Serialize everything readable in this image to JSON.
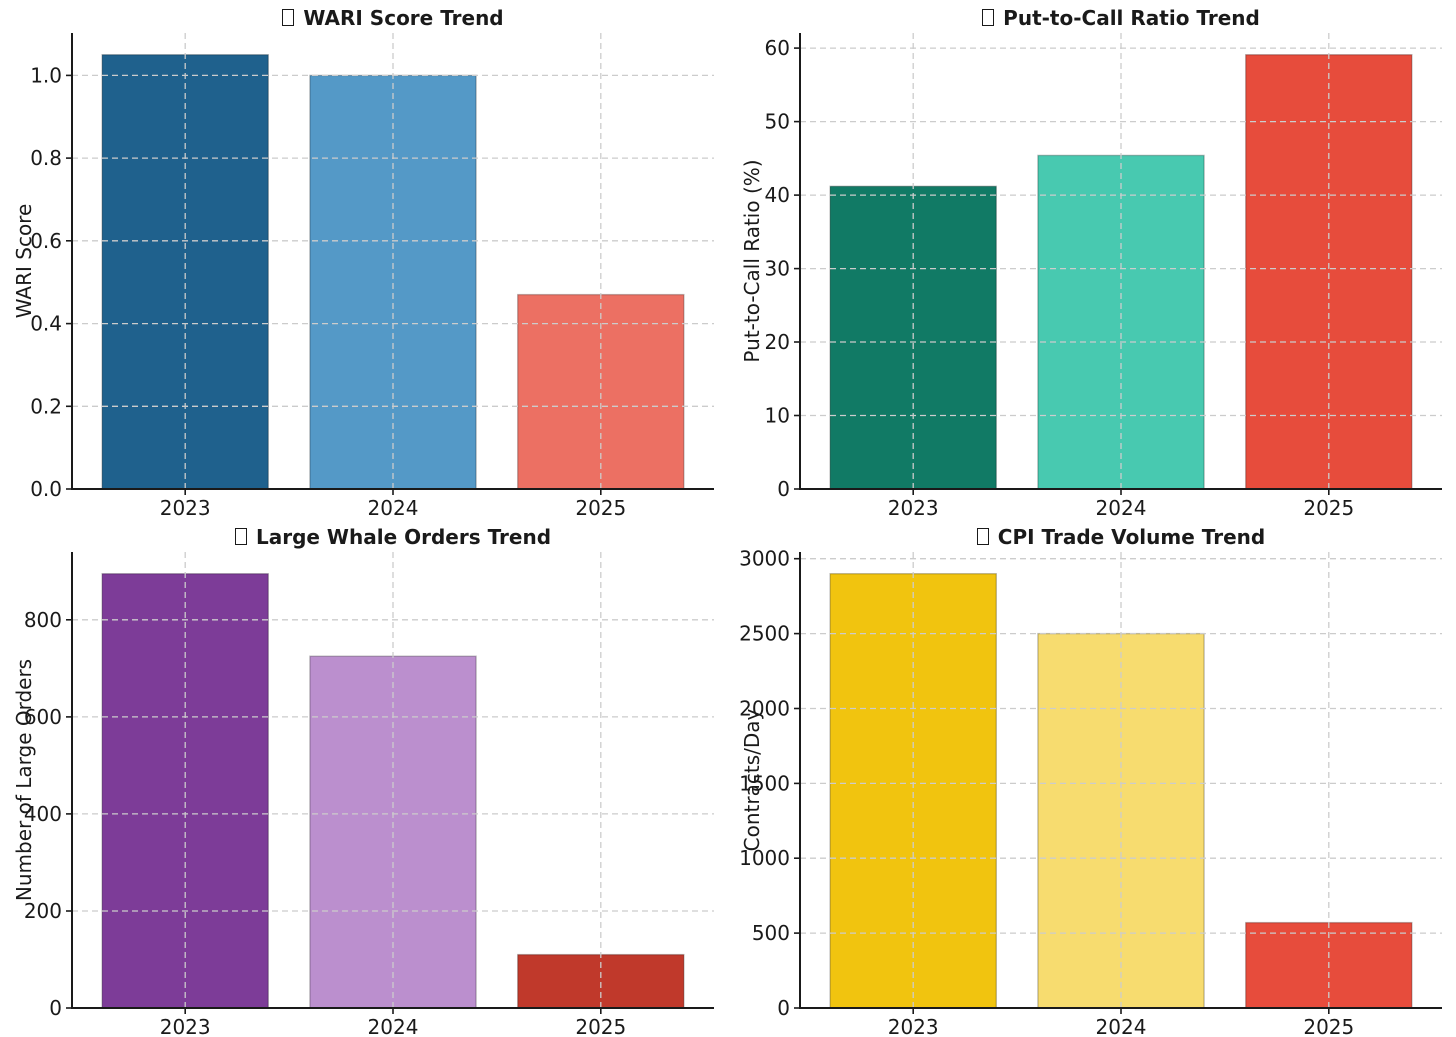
{
  "figure": {
    "background": "#ffffff",
    "grid_color": "#cccccc",
    "axis_color": "#1a1a1a",
    "text_color": "#1a1a1a",
    "bar_edge_color": "rgba(0,0,0,0.24)"
  },
  "chart_data": [
    {
      "type": "bar",
      "panel": "top-left",
      "title": "WARI Score Trend",
      "title_icon": "missing-glyph-box",
      "xlabel": "",
      "ylabel": "WARI Score",
      "categories": [
        "2023",
        "2024",
        "2025"
      ],
      "values": [
        1.05,
        1.0,
        0.47
      ],
      "bar_colors": [
        "#1F618D",
        "#5499C7",
        "#EC7063"
      ],
      "ylim": [
        0,
        1.1025
      ],
      "yticks": [
        0,
        0.2,
        0.4,
        0.6,
        0.8,
        1.0
      ],
      "ytick_labels": [
        "0.0",
        "0.2",
        "0.4",
        "0.6",
        "0.8",
        "1.0"
      ],
      "grid": "dashed-both-axes",
      "legend": null
    },
    {
      "type": "bar",
      "panel": "top-right",
      "title": "Put-to-Call Ratio Trend",
      "title_icon": "missing-glyph-box",
      "xlabel": "",
      "ylabel": "Put-to-Call Ratio (%)",
      "categories": [
        "2023",
        "2024",
        "2025"
      ],
      "values": [
        41.2,
        45.4,
        59.1
      ],
      "bar_colors": [
        "#117A65",
        "#48C9B0",
        "#E74C3C"
      ],
      "ylim": [
        0,
        62.06
      ],
      "yticks": [
        0,
        10,
        20,
        30,
        40,
        50,
        60
      ],
      "ytick_labels": [
        "0",
        "10",
        "20",
        "30",
        "40",
        "50",
        "60"
      ],
      "grid": "dashed-both-axes",
      "legend": null
    },
    {
      "type": "bar",
      "panel": "bottom-left",
      "title": "Large Whale Orders Trend",
      "title_icon": "missing-glyph-box",
      "xlabel": "",
      "ylabel": "Number of Large Orders",
      "categories": [
        "2023",
        "2024",
        "2025"
      ],
      "values": [
        895,
        725,
        110
      ],
      "bar_colors": [
        "#7D3C98",
        "#BB8FCE",
        "#C0392B"
      ],
      "ylim": [
        0,
        939.75
      ],
      "yticks": [
        0,
        200,
        400,
        600,
        800
      ],
      "ytick_labels": [
        "0",
        "200",
        "400",
        "600",
        "800"
      ],
      "grid": "dashed-both-axes",
      "legend": null
    },
    {
      "type": "bar",
      "panel": "bottom-right",
      "title": "CPI Trade Volume Trend",
      "title_icon": "missing-glyph-box",
      "xlabel": "",
      "ylabel": "Contracts/Day",
      "categories": [
        "2023",
        "2024",
        "2025"
      ],
      "values": [
        2900,
        2500,
        570
      ],
      "bar_colors": [
        "#F1C40F",
        "#F7DC6F",
        "#E74C3C"
      ],
      "ylim": [
        0,
        3045
      ],
      "yticks": [
        0,
        500,
        1000,
        1500,
        2000,
        2500,
        3000
      ],
      "ytick_labels": [
        "0",
        "500",
        "1000",
        "1500",
        "2000",
        "2500",
        "3000"
      ],
      "grid": "dashed-both-axes",
      "legend": null
    }
  ]
}
